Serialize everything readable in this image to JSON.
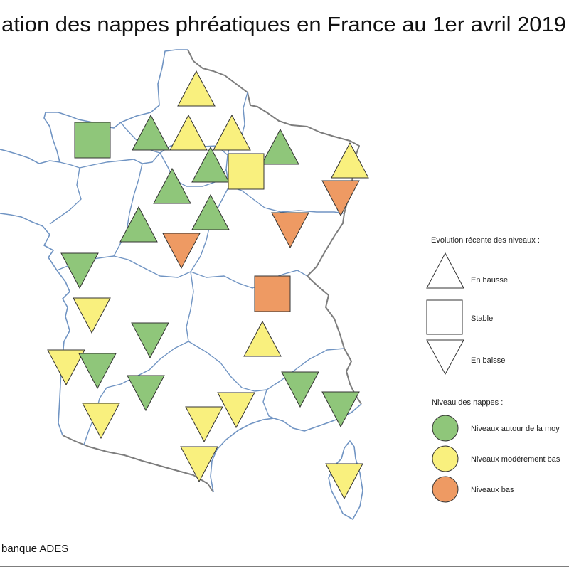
{
  "title": "ation des nappes phréatiques en France au 1er avril 2019",
  "source": "banque ADES",
  "legend": {
    "trend_title": "Evolution récente des niveaux :",
    "trends": [
      {
        "key": "up",
        "label": "En hausse",
        "icon": "up-triangle-icon"
      },
      {
        "key": "stable",
        "label": "Stable",
        "icon": "square-icon"
      },
      {
        "key": "down",
        "label": "En baisse",
        "icon": "down-triangle-icon"
      }
    ],
    "level_title": "Niveau des nappes :",
    "levels": [
      {
        "key": "moyenne",
        "label": "Niveaux autour de la moy",
        "color": "#8fc67a"
      },
      {
        "key": "modere",
        "label": "Niveaux modérement bas",
        "color": "#f9f07e"
      },
      {
        "key": "bas",
        "label": "Niveaux bas",
        "color": "#ee9a63"
      }
    ]
  },
  "colors": {
    "coastline": "#7094c3",
    "national_border": "#7d7d7d",
    "region_border": "#7094c3",
    "marker_stroke": "#333333"
  },
  "markers": [
    {
      "trend": "up",
      "level": "modere"
    },
    {
      "trend": "stable",
      "level": "moyenne"
    },
    {
      "trend": "up",
      "level": "moyenne"
    },
    {
      "trend": "up",
      "level": "modere"
    },
    {
      "trend": "up",
      "level": "modere"
    },
    {
      "trend": "up",
      "level": "moyenne"
    },
    {
      "trend": "up",
      "level": "moyenne"
    },
    {
      "trend": "stable",
      "level": "modere"
    },
    {
      "trend": "up",
      "level": "modere"
    },
    {
      "trend": "down",
      "level": "bas"
    },
    {
      "trend": "up",
      "level": "moyenne"
    },
    {
      "trend": "up",
      "level": "moyenne"
    },
    {
      "trend": "up",
      "level": "moyenne"
    },
    {
      "trend": "down",
      "level": "bas"
    },
    {
      "trend": "down",
      "level": "bas"
    },
    {
      "trend": "down",
      "level": "moyenne"
    },
    {
      "trend": "stable",
      "level": "bas"
    },
    {
      "trend": "down",
      "level": "modere"
    },
    {
      "trend": "down",
      "level": "moyenne"
    },
    {
      "trend": "up",
      "level": "modere"
    },
    {
      "trend": "down",
      "level": "modere"
    },
    {
      "trend": "down",
      "level": "moyenne"
    },
    {
      "trend": "down",
      "level": "moyenne"
    },
    {
      "trend": "down",
      "level": "moyenne"
    },
    {
      "trend": "down",
      "level": "moyenne"
    },
    {
      "trend": "down",
      "level": "modere"
    },
    {
      "trend": "down",
      "level": "modere"
    },
    {
      "trend": "down",
      "level": "modere"
    },
    {
      "trend": "down",
      "level": "modere"
    },
    {
      "trend": "down",
      "level": "modere"
    }
  ]
}
